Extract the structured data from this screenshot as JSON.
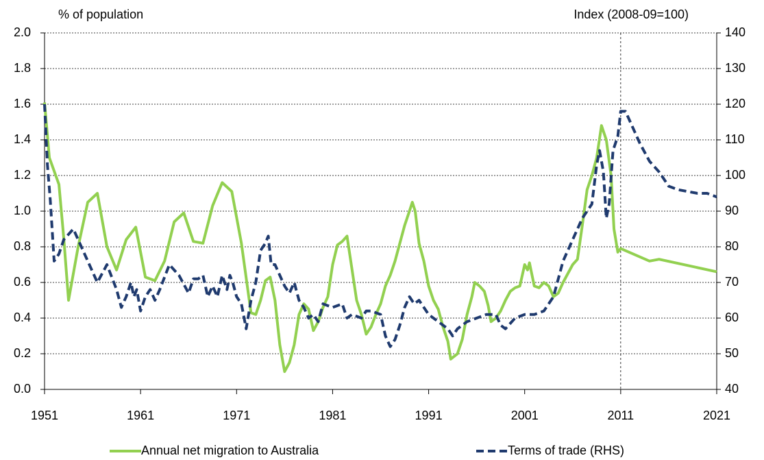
{
  "chart_data": {
    "type": "line",
    "ylabel": "% of population",
    "y2label": "Index (2008-09=100)",
    "xlim": [
      1951,
      2021
    ],
    "xticks": [
      1951,
      1961,
      1971,
      1981,
      1991,
      2001,
      2011,
      2021
    ],
    "ylim": [
      0,
      2
    ],
    "yticks": [
      {
        "value": 0,
        "label": "0.0"
      },
      0.2,
      0.4,
      0.6,
      0.8,
      {
        "value": 1,
        "label": "1.0"
      },
      1.2,
      1.4,
      1.6,
      1.8,
      {
        "value": 2,
        "label": "2.0"
      }
    ],
    "y2lim": [
      40,
      140
    ],
    "y2ticks": [
      40,
      50,
      60,
      70,
      80,
      90,
      100,
      110,
      120,
      130,
      140
    ],
    "grid": true,
    "vline_x": 2011,
    "legend": "bottom",
    "series": [
      {
        "name": "Annual net migration to Australia",
        "color": "#92d050",
        "axis": "y",
        "x": [
          1951,
          1951.5,
          1952.5,
          1953,
          1953.5,
          1954.5,
          1955.5,
          1956.5,
          1957.5,
          1958.5,
          1959.5,
          1960.5,
          1961.5,
          1962.5,
          1963.5,
          1964.5,
          1965.5,
          1966.5,
          1967.5,
          1968.5,
          1969.5,
          1970.5,
          1971.5,
          1972.5,
          1973,
          1973.5,
          1974,
          1974.5,
          1975,
          1975.5,
          1976,
          1976.5,
          1977,
          1977.5,
          1978,
          1978.5,
          1979,
          1979.5,
          1980,
          1980.5,
          1981,
          1981.5,
          1982,
          1982.5,
          1983,
          1983.5,
          1984,
          1984.5,
          1985,
          1985.5,
          1986,
          1986.5,
          1987,
          1987.5,
          1988,
          1988.5,
          1989,
          1989.3,
          1989.6,
          1990,
          1990.5,
          1991,
          1991.5,
          1992,
          1992.5,
          1993,
          1993.3,
          1994,
          1994.5,
          1995,
          1995.5,
          1995.8,
          1996.3,
          1996.8,
          1997.2,
          1997.5,
          1998,
          1998.5,
          1999,
          1999.5,
          2000,
          2000.5,
          2001,
          2001.3,
          2001.5,
          2002,
          2002.5,
          2003,
          2003.5,
          2004,
          2004.5,
          2005,
          2005.5,
          2006,
          2006.5,
          2007,
          2007.5,
          2008,
          2008.5,
          2009,
          2009.5,
          2010,
          2010.3,
          2010.7,
          2011,
          2014,
          2015,
          2021
        ],
        "values": [
          1.61,
          1.3,
          1.15,
          0.85,
          0.5,
          0.8,
          1.05,
          1.1,
          0.8,
          0.67,
          0.84,
          0.91,
          0.63,
          0.61,
          0.72,
          0.94,
          0.99,
          0.83,
          0.82,
          1.03,
          1.16,
          1.11,
          0.82,
          0.43,
          0.42,
          0.5,
          0.61,
          0.63,
          0.5,
          0.25,
          0.1,
          0.15,
          0.25,
          0.42,
          0.48,
          0.45,
          0.33,
          0.38,
          0.46,
          0.52,
          0.7,
          0.81,
          0.83,
          0.86,
          0.68,
          0.5,
          0.42,
          0.31,
          0.35,
          0.42,
          0.48,
          0.58,
          0.64,
          0.72,
          0.82,
          0.92,
          1.0,
          1.05,
          1.0,
          0.82,
          0.72,
          0.58,
          0.5,
          0.45,
          0.35,
          0.27,
          0.17,
          0.2,
          0.28,
          0.42,
          0.52,
          0.6,
          0.58,
          0.55,
          0.47,
          0.38,
          0.4,
          0.44,
          0.5,
          0.55,
          0.57,
          0.58,
          0.7,
          0.67,
          0.71,
          0.58,
          0.57,
          0.6,
          0.58,
          0.52,
          0.54,
          0.6,
          0.65,
          0.7,
          0.73,
          0.92,
          1.12,
          1.2,
          1.3,
          1.48,
          1.4,
          1.2,
          0.9,
          0.77,
          0.79,
          0.72,
          0.73,
          0.66
        ]
      },
      {
        "name": "Terms of trade (RHS)",
        "color": "#1f3a6e",
        "axis": "y2",
        "x": [
          1951,
          1951.3,
          1951.6,
          1952,
          1952.5,
          1953,
          1954,
          1955,
          1956,
          1956.5,
          1957.5,
          1958.5,
          1959,
          1959.5,
          1960,
          1960.3,
          1960.6,
          1961,
          1961.5,
          1962,
          1962.5,
          1963,
          1964,
          1965,
          1966,
          1966.5,
          1967,
          1967.5,
          1968,
          1968.5,
          1969,
          1969.5,
          1970,
          1970.3,
          1970.6,
          1971,
          1971.5,
          1972,
          1972.5,
          1973,
          1973.5,
          1974,
          1974.3,
          1974.6,
          1975,
          1976,
          1976.5,
          1977,
          1977.5,
          1978,
          1978.5,
          1979,
          1979.5,
          1980,
          1981,
          1982,
          1982.5,
          1983,
          1984,
          1984.5,
          1985,
          1986,
          1986.5,
          1987,
          1987.5,
          1988,
          1988.5,
          1989,
          1989.5,
          1990,
          1990.5,
          1991,
          1992,
          1993,
          1993.5,
          1994,
          1995,
          1996,
          1997,
          1998,
          1998.5,
          1999,
          2000,
          2001,
          2002,
          2003,
          2004,
          2005,
          2006,
          2007,
          2008,
          2008.5,
          2008.8,
          2009.2,
          2009.5,
          2009.8,
          2010.2,
          2010.7,
          2011,
          2011.5,
          2012,
          2013,
          2014,
          2015,
          2016,
          2017,
          2018,
          2019,
          2020,
          2021
        ],
        "values": [
          120,
          103,
          93,
          76,
          78,
          82,
          85,
          79,
          73,
          70,
          75,
          68,
          63,
          66,
          70,
          66,
          68,
          62,
          66,
          68,
          65,
          68,
          75,
          72,
          67,
          71,
          71,
          72,
          66,
          69,
          66,
          72,
          68,
          72,
          70,
          66,
          64,
          57,
          65,
          70,
          79,
          81,
          83,
          75,
          75,
          69,
          67,
          70,
          65,
          63,
          60,
          61,
          59,
          64,
          63,
          64,
          60,
          61,
          60,
          62,
          62,
          61,
          55,
          52,
          54,
          58,
          63,
          66,
          64,
          65,
          63,
          61,
          59,
          57,
          55,
          57,
          59,
          60,
          61,
          61,
          58,
          57,
          60,
          61,
          61,
          62,
          66,
          76,
          82,
          88,
          92,
          103,
          107,
          101,
          88,
          92,
          107,
          111,
          118,
          118,
          115,
          109,
          104,
          101,
          97,
          96,
          95.5,
          95,
          95,
          94
        ]
      }
    ]
  }
}
